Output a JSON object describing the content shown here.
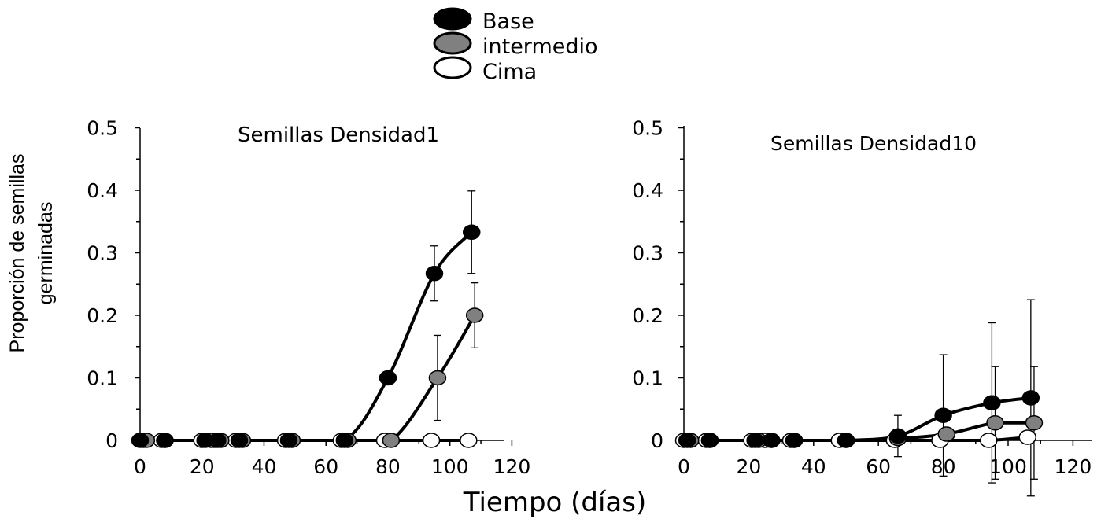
{
  "legend": {
    "placement": "top-center",
    "entries": [
      {
        "label": "Base",
        "fill": "#000000"
      },
      {
        "label": "intermedio",
        "fill": "#808080"
      },
      {
        "label": "Cima",
        "fill": "#ffffff"
      }
    ]
  },
  "ylabel_lines": [
    "Proporción de semillas",
    "germinadas"
  ],
  "xlabel": "Tiempo (días)",
  "chart_data": [
    {
      "type": "scatter",
      "title": "Semillas Densidad1",
      "xlim": [
        0,
        120
      ],
      "ylim": [
        0,
        0.5
      ],
      "x_ticks": [
        "0",
        "20",
        "40",
        "60",
        "80",
        "100",
        "120"
      ],
      "y_ticks": [
        "0",
        "0.1",
        "0.2",
        "0.3",
        "0.4",
        "0.5"
      ],
      "fitted_curves": true,
      "series": [
        {
          "name": "Base",
          "fill": "#000000",
          "x": [
            0,
            8,
            21,
            25,
            32,
            48,
            66,
            80,
            95,
            107
          ],
          "y": [
            0,
            0,
            0,
            0,
            0,
            0,
            0,
            0.1,
            0.267,
            0.333
          ],
          "err": [
            0,
            0,
            0,
            0,
            0,
            0,
            0,
            0,
            0.044,
            0.066
          ]
        },
        {
          "name": "intermedio",
          "fill": "#808080",
          "x": [
            2,
            8,
            23,
            26,
            33,
            49,
            67,
            81,
            96,
            108
          ],
          "y": [
            0,
            0,
            0,
            0,
            0,
            0,
            0,
            0,
            0.1,
            0.2
          ],
          "err": [
            0,
            0,
            0,
            0,
            0,
            0,
            0,
            0,
            0.068,
            0.052
          ]
        },
        {
          "name": "Cima",
          "fill": "#ffffff",
          "x": [
            1,
            7,
            20,
            24,
            31,
            47,
            65,
            79,
            94,
            106
          ],
          "y": [
            0,
            0,
            0,
            0,
            0,
            0,
            0,
            0,
            0,
            0
          ],
          "err": [
            0,
            0,
            0,
            0,
            0,
            0,
            0,
            0,
            0,
            0
          ]
        }
      ]
    },
    {
      "type": "scatter",
      "title": "Semillas Densidad10",
      "xlim": [
        0,
        120
      ],
      "ylim": [
        0,
        0.5
      ],
      "x_ticks": [
        "0",
        "20",
        "40",
        "60",
        "80",
        "100",
        "120"
      ],
      "y_ticks": [
        "0",
        "0.1",
        "0.2",
        "0.3",
        "0.4",
        "0.5"
      ],
      "fitted_curves": true,
      "series": [
        {
          "name": "Base",
          "fill": "#000000",
          "x": [
            1,
            8,
            22,
            27,
            34,
            50,
            66,
            80,
            95,
            107
          ],
          "y": [
            0,
            0,
            0,
            0,
            0,
            0,
            0.007,
            0.04,
            0.06,
            0.068
          ],
          "err": [
            0,
            0,
            0,
            0,
            0,
            0,
            0.033,
            0.097,
            0.128,
            0.157
          ]
        },
        {
          "name": "intermedio",
          "fill": "#808080",
          "x": [
            2,
            8,
            23,
            27,
            34,
            50,
            66,
            81,
            96,
            108
          ],
          "y": [
            0,
            0,
            0,
            0,
            0,
            0,
            0.003,
            0.01,
            0.028,
            0.028
          ],
          "err": [
            0,
            0,
            0,
            0,
            0,
            0,
            0,
            0,
            0.09,
            0.09
          ]
        },
        {
          "name": "Cima",
          "fill": "#ffffff",
          "x": [
            0,
            7,
            21,
            25,
            33,
            48,
            65,
            79,
            94,
            106
          ],
          "y": [
            0,
            0,
            0,
            0,
            0,
            0,
            0,
            0,
            0,
            0.005
          ],
          "err": [
            0,
            0,
            0,
            0,
            0,
            0,
            0,
            0,
            0,
            0
          ]
        }
      ]
    }
  ]
}
